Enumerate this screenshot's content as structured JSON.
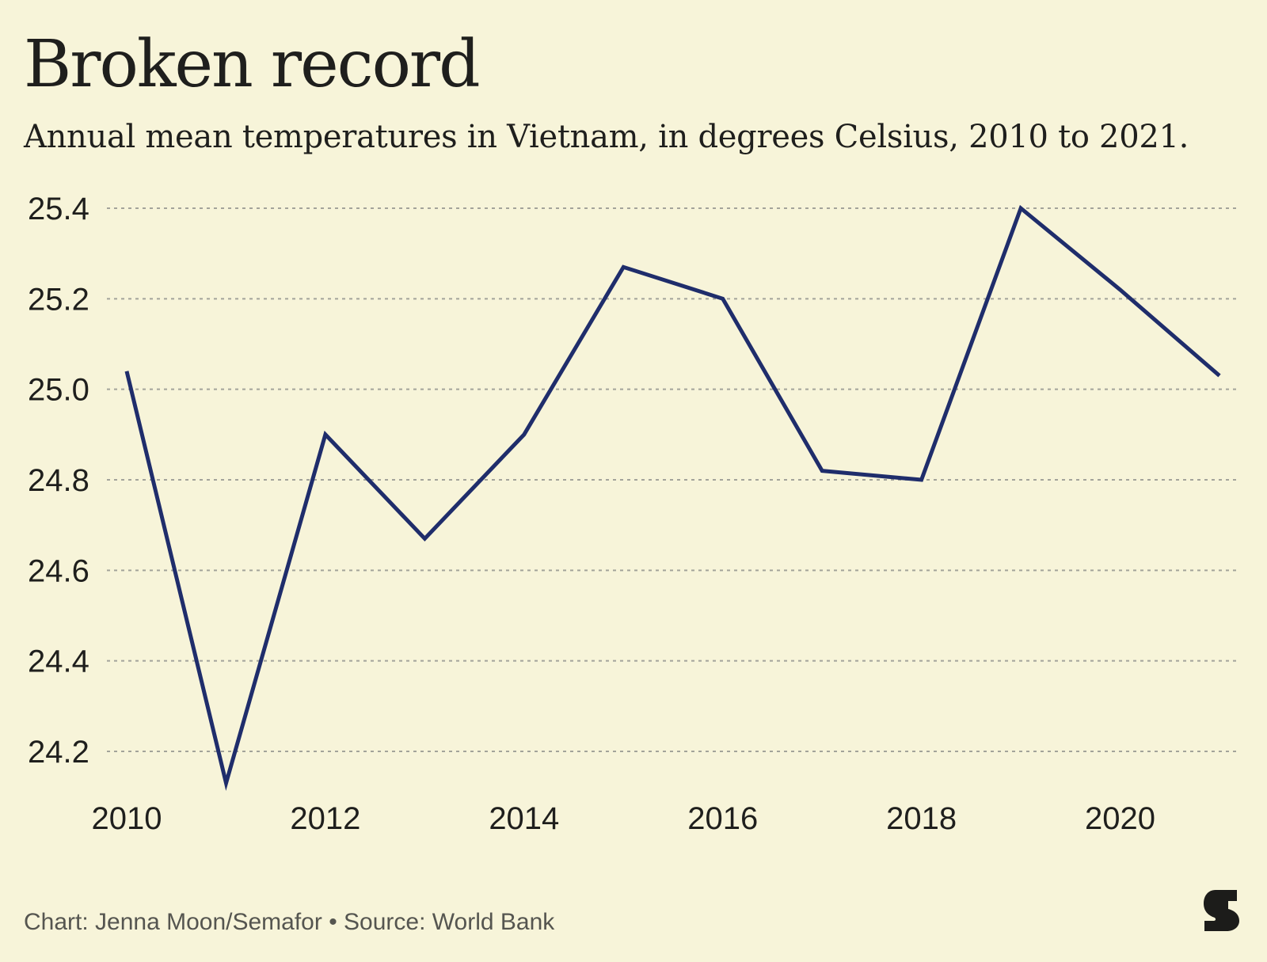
{
  "header": {
    "title": "Broken record",
    "subtitle": "Annual mean temperatures in Vietnam, in degrees Celsius, 2010 to 2021."
  },
  "footer": {
    "credit": "Chart: Jenna Moon/Semafor • Source: World Bank"
  },
  "logo": {
    "icon": "semafor-logo-icon",
    "color": "#1c1c1a"
  },
  "colors": {
    "background": "#f7f4d9",
    "line": "#1f2d6b",
    "grid": "#a3a39a",
    "text": "#1f1f1d"
  },
  "chart_data": {
    "type": "line",
    "title": "",
    "xlabel": "",
    "ylabel": "",
    "x": [
      2010,
      2011,
      2012,
      2013,
      2014,
      2015,
      2016,
      2017,
      2018,
      2019,
      2020,
      2021
    ],
    "series": [
      {
        "values": [
          25.04,
          24.13,
          24.9,
          24.67,
          24.9,
          25.27,
          25.2,
          24.82,
          24.8,
          25.4,
          25.22,
          25.03
        ]
      }
    ],
    "x_ticks": [
      "2010",
      "2012",
      "2014",
      "2016",
      "2018",
      "2020"
    ],
    "y_ticks": [
      "24.2",
      "24.4",
      "24.6",
      "24.8",
      "25.0",
      "25.2",
      "25.4"
    ],
    "xlim": [
      2010,
      2021
    ],
    "ylim": [
      24.2,
      25.4
    ],
    "grid": "horizontal dashed",
    "legend": "none"
  }
}
